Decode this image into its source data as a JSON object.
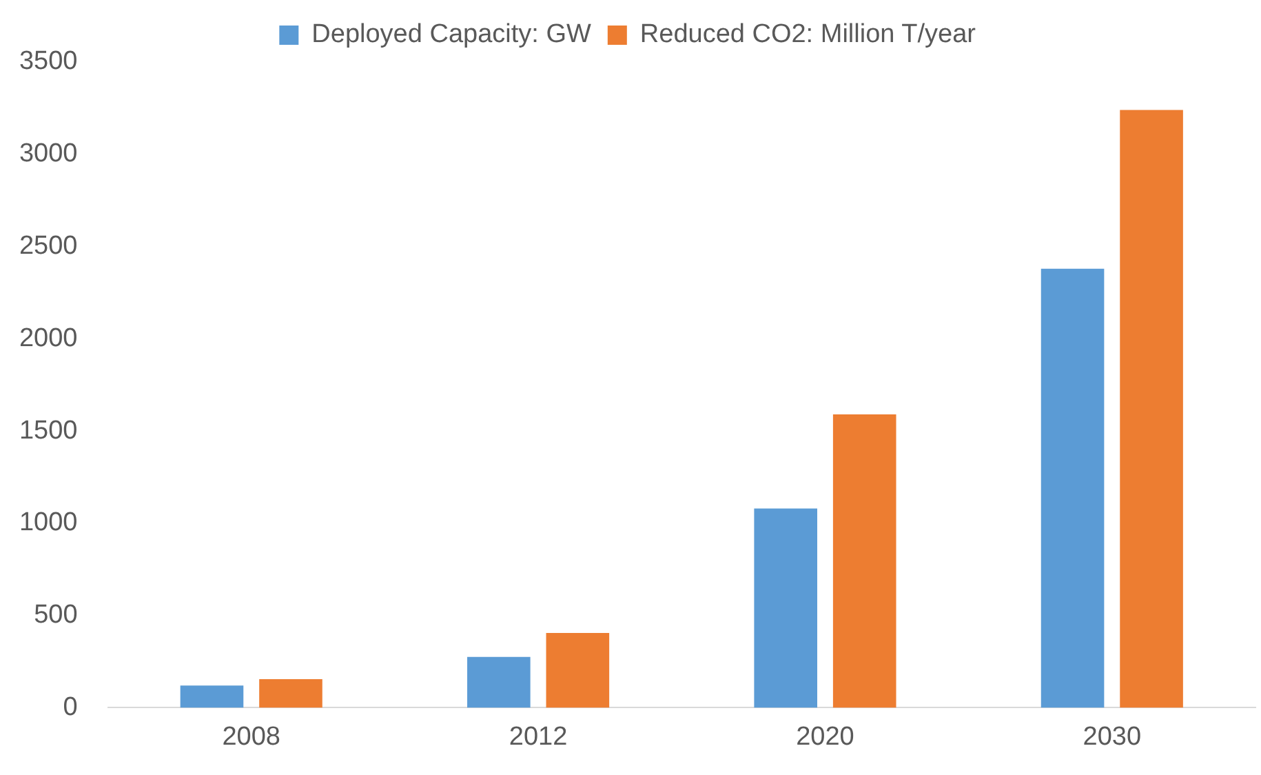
{
  "chart_data": {
    "type": "bar",
    "categories": [
      "2008",
      "2012",
      "2020",
      "2030"
    ],
    "series": [
      {
        "name": "Deployed Capacity: GW",
        "color": "#5b9bd5",
        "values": [
          120,
          275,
          1080,
          2380
        ]
      },
      {
        "name": "Reduced CO2: Million T/year",
        "color": "#ed7d31",
        "values": [
          155,
          405,
          1590,
          3240
        ]
      }
    ],
    "ylim": [
      0,
      3500
    ],
    "yticks": [
      0,
      500,
      1000,
      1500,
      2000,
      2500,
      3000,
      3500
    ],
    "grid": false,
    "legend": "top"
  }
}
